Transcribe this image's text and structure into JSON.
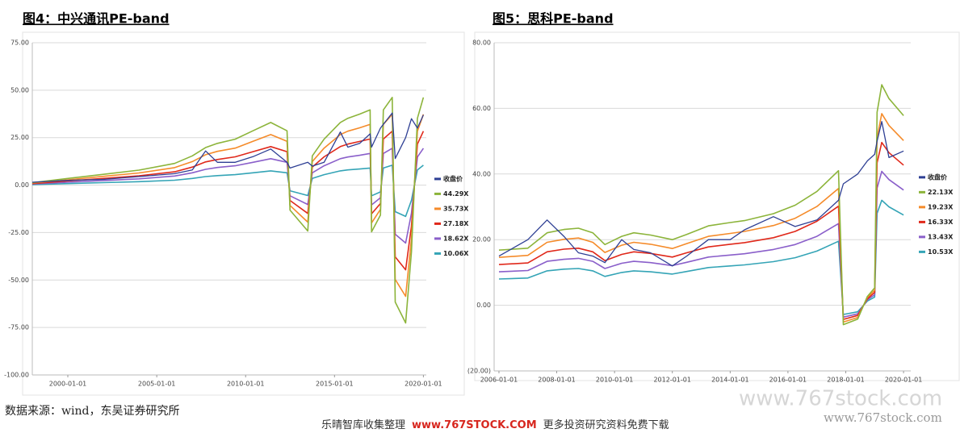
{
  "chart_data": [
    {
      "type": "line",
      "title": "图4：中兴通讯PE-band",
      "x": [
        "1998-01-01",
        "2000-01-01",
        "2002-01-01",
        "2004-01-01",
        "2006-01-01",
        "2007-01-01",
        "2007-10-01",
        "2008-06-01",
        "2009-06-01",
        "2010-06-01",
        "2011-06-01",
        "2012-05-01",
        "2012-07-01",
        "2013-07-01",
        "2013-10-01",
        "2014-06-01",
        "2015-05-01",
        "2015-10-01",
        "2016-06-01",
        "2017-01-01",
        "2017-02-01",
        "2017-08-01",
        "2017-10-01",
        "2018-04-01",
        "2018-06-01",
        "2019-01-01",
        "2019-05-01",
        "2019-09-01",
        "2020-01-01"
      ],
      "series": [
        {
          "name": "收盘价",
          "color": "#2e3f94",
          "values": [
            1.5,
            2.5,
            3,
            4.5,
            6,
            8,
            18,
            12,
            12,
            15,
            19,
            12,
            9,
            12,
            10,
            12,
            28,
            20,
            22,
            27,
            20,
            30,
            32,
            38,
            14,
            25,
            35,
            30,
            37
          ]
        },
        {
          "name": "44.29X",
          "color": "#8cb43a",
          "values": [
            1.3,
            3.5,
            5.7,
            7.9,
            11.4,
            15.4,
            19.8,
            22,
            24.2,
            28.6,
            33,
            28.6,
            -13.2,
            -24.2,
            15.4,
            24.2,
            33,
            35.2,
            37.4,
            39.6,
            -24.6,
            -15.8,
            39.6,
            46.2,
            -61.6,
            -72.6,
            -35.2,
            35.2,
            46.2
          ]
        },
        {
          "name": "35.73X",
          "color": "#f58b2a",
          "values": [
            1.1,
            2.8,
            4.6,
            6.4,
            9.2,
            12.4,
            16,
            17.8,
            19.5,
            23.1,
            26.6,
            23.1,
            -10.7,
            -19.5,
            12.4,
            19.5,
            26.6,
            28.4,
            30.2,
            32,
            -19.9,
            -12.8,
            32,
            37.3,
            -49.7,
            -58.6,
            -28.4,
            28.4,
            37.3
          ]
        },
        {
          "name": "27.18X",
          "color": "#e0281a",
          "values": [
            0.8,
            2.2,
            3.5,
            4.9,
            7,
            9.5,
            12.2,
            13.5,
            14.9,
            17.6,
            20.3,
            17.6,
            -8.1,
            -14.9,
            9.5,
            14.9,
            20.3,
            21.6,
            23,
            24.3,
            -15.1,
            -9.7,
            24.3,
            28.4,
            -37.8,
            -44.6,
            -21.6,
            21.6,
            28.4
          ]
        },
        {
          "name": "18.62X",
          "color": "#8a5fca",
          "values": [
            0.6,
            1.5,
            2.4,
            3.3,
            4.8,
            6.5,
            8.3,
            9.3,
            10.2,
            12,
            13.9,
            12,
            -5.6,
            -10.2,
            6.5,
            10.2,
            13.9,
            14.8,
            15.7,
            16.7,
            -10.4,
            -6.7,
            16.7,
            19.4,
            -25.9,
            -30.5,
            -14.8,
            14.8,
            19.4
          ]
        },
        {
          "name": "10.06X",
          "color": "#34a4b6",
          "values": [
            0.3,
            0.8,
            1.3,
            1.8,
            2.6,
            3.5,
            4.5,
            5,
            5.5,
            6.5,
            7.5,
            6.5,
            -3,
            -5.5,
            3.5,
            5.5,
            7.5,
            8,
            8.5,
            9,
            -5.6,
            -3.6,
            9,
            10.5,
            -14,
            -16.5,
            -8,
            8,
            10.5
          ]
        }
      ],
      "xlim": [
        "1998-01-01",
        "2020-03-01"
      ],
      "xticks": [
        "2000-01-01",
        "2005-01-01",
        "2010-01-01",
        "2015-01-01",
        "2020-01-01"
      ],
      "ylim": [
        -100,
        75
      ],
      "yticks": [
        {
          "value": 75,
          "label": "75.00"
        },
        {
          "value": 50,
          "label": "50.00"
        },
        {
          "value": 25,
          "label": "25.00"
        },
        {
          "value": 0,
          "label": "0.00"
        },
        {
          "value": -25,
          "label": "-25.00"
        },
        {
          "value": -50,
          "label": "-50.00"
        },
        {
          "value": -75,
          "label": "-75.00"
        },
        {
          "value": -100,
          "label": "-100.00"
        }
      ],
      "grid": true,
      "legend": "right"
    },
    {
      "type": "line",
      "title": "图5：思科PE-band",
      "x": [
        "2006-01-01",
        "2007-01-01",
        "2007-09-01",
        "2008-04-01",
        "2008-10-01",
        "2009-04-01",
        "2009-09-01",
        "2010-04-01",
        "2010-09-01",
        "2011-04-01",
        "2012-01-01",
        "2012-07-01",
        "2013-04-01",
        "2014-01-01",
        "2014-07-01",
        "2015-07-01",
        "2016-04-01",
        "2017-01-01",
        "2017-10-01",
        "2017-12-01",
        "2018-06-01",
        "2018-10-01",
        "2019-01-01",
        "2019-02-01",
        "2019-04-01",
        "2019-07-01",
        "2020-01-01"
      ],
      "series": [
        {
          "name": "收盘价",
          "color": "#2e3f94",
          "values": [
            15,
            20,
            26,
            21,
            16,
            15,
            13,
            20,
            17,
            16,
            12,
            15,
            20,
            20,
            23,
            27,
            24,
            26,
            32,
            37,
            40,
            44,
            46,
            50,
            56,
            45,
            47
          ]
        },
        {
          "name": "22.13X",
          "color": "#8cb43a",
          "values": [
            16.8,
            17.4,
            22.1,
            23.1,
            23.5,
            22.1,
            18.5,
            21,
            22.1,
            21.4,
            20,
            21.6,
            24.2,
            25.2,
            25.8,
            27.9,
            30.5,
            34.7,
            41,
            -5.9,
            -4.2,
            2.7,
            5.3,
            58.8,
            67.2,
            63,
            57.8
          ]
        },
        {
          "name": "19.23X",
          "color": "#f58b2a",
          "values": [
            14.6,
            15.2,
            19.2,
            20.1,
            20.5,
            19.2,
            16.1,
            18.3,
            19.2,
            18.6,
            17.3,
            18.8,
            21,
            21.9,
            22.5,
            24.3,
            26.5,
            30.1,
            35.6,
            -5.1,
            -3.7,
            2.4,
            4.6,
            51.1,
            58.4,
            54.8,
            50.2
          ]
        },
        {
          "name": "16.33X",
          "color": "#e0281a",
          "values": [
            12.4,
            12.9,
            16.3,
            17.1,
            17.4,
            16.3,
            13.6,
            15.5,
            16.3,
            15.8,
            14.7,
            16,
            17.8,
            18.6,
            19.1,
            20.6,
            22.5,
            25.6,
            30.2,
            -4.3,
            -3.1,
            2,
            3.9,
            43.4,
            49.6,
            46.5,
            42.7
          ]
        },
        {
          "name": "13.43X",
          "color": "#8a5fca",
          "values": [
            10.2,
            10.6,
            13.4,
            14,
            14.3,
            13.4,
            11.2,
            12.8,
            13.4,
            13,
            12.1,
            13.1,
            14.7,
            15.3,
            15.7,
            17,
            18.5,
            21,
            24.9,
            -3.6,
            -2.6,
            1.7,
            3.2,
            35.7,
            40.8,
            38.3,
            35.1
          ]
        },
        {
          "name": "10.53X",
          "color": "#34a4b6",
          "values": [
            8,
            8.3,
            10.5,
            11,
            11.2,
            10.5,
            8.8,
            10,
            10.5,
            10.2,
            9.5,
            10.3,
            11.5,
            12,
            12.3,
            13.3,
            14.5,
            16.5,
            19.5,
            -2.8,
            -2,
            1.3,
            2.5,
            28,
            32,
            30,
            27.5
          ]
        }
      ],
      "xlim": [
        "2005-11-01",
        "2020-04-01"
      ],
      "xticks": [
        "2006-01-01",
        "2008-01-01",
        "2010-01-01",
        "2012-01-01",
        "2014-01-01",
        "2016-01-01",
        "2018-01-01",
        "2020-01-01"
      ],
      "ylim": [
        -20,
        80
      ],
      "yticks": [
        {
          "value": 80,
          "label": "80.00"
        },
        {
          "value": 60,
          "label": "60.00"
        },
        {
          "value": 40,
          "label": "40.00"
        },
        {
          "value": 20,
          "label": "20.00"
        },
        {
          "value": 0,
          "label": "0.00"
        },
        {
          "value": -20,
          "label": "(20.00)"
        }
      ],
      "grid": true,
      "legend": "right"
    }
  ],
  "source": "数据来源：wind，东吴证券研究所",
  "watermark": "www.767stock.com",
  "watermark_small": "www.767stock.com",
  "footer_left": "乐晴智库收集整理",
  "footer_url": "www.767STOCK.COM",
  "footer_right": "更多投资研究资料免费下载"
}
